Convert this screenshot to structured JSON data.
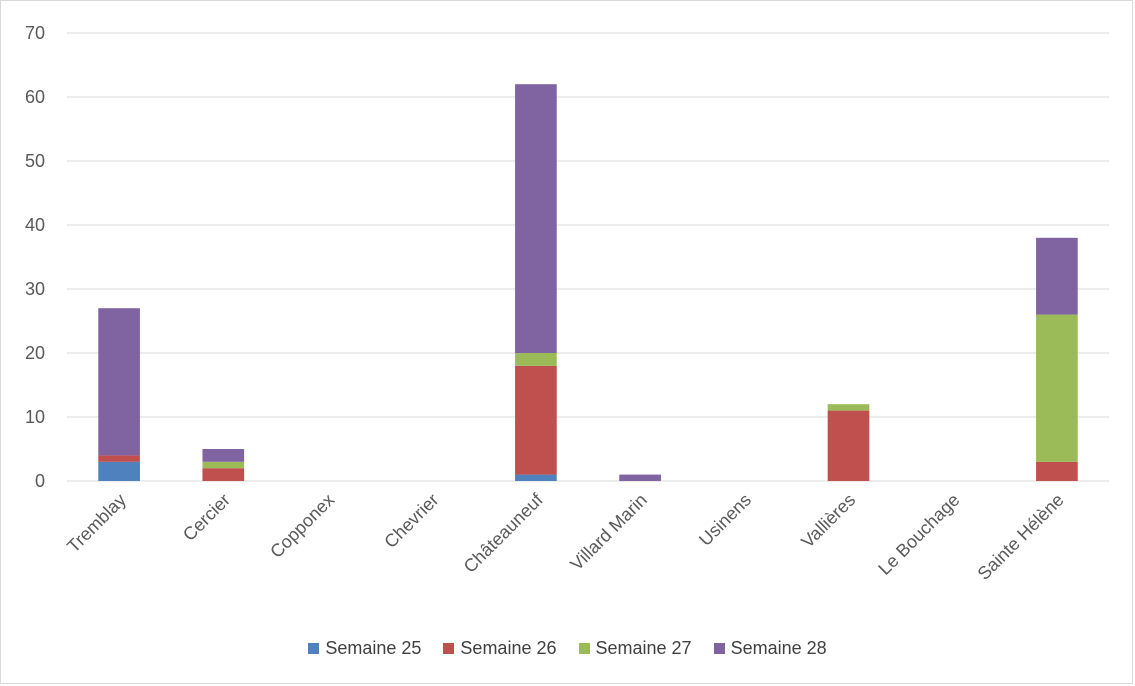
{
  "chart_data": {
    "type": "bar",
    "stacked": true,
    "categories": [
      "Tremblay",
      "Cercier",
      "Copponex",
      "Chevrier",
      "Châteauneuf",
      "Villard Marin",
      "Usinens",
      "Vallières",
      "Le Bouchage",
      "Sainte Hélène"
    ],
    "series": [
      {
        "name": "Semaine 25",
        "color": "#4f81bd",
        "values": [
          3,
          0,
          0,
          0,
          1,
          0,
          0,
          0,
          0,
          0
        ]
      },
      {
        "name": "Semaine 26",
        "color": "#c0504d",
        "values": [
          1,
          2,
          0,
          0,
          17,
          0,
          0,
          11,
          0,
          3
        ]
      },
      {
        "name": "Semaine 27",
        "color": "#9bbb59",
        "values": [
          0,
          1,
          0,
          0,
          2,
          0,
          0,
          1,
          0,
          23
        ]
      },
      {
        "name": "Semaine 28",
        "color": "#8064a2",
        "values": [
          23,
          2,
          0,
          0,
          42,
          1,
          0,
          0,
          0,
          12
        ]
      }
    ],
    "ylim": [
      0,
      70
    ],
    "yticks": [
      "0",
      "10",
      "20",
      "30",
      "40",
      "50",
      "60",
      "70"
    ],
    "grid": true,
    "legend_position": "bottom"
  }
}
